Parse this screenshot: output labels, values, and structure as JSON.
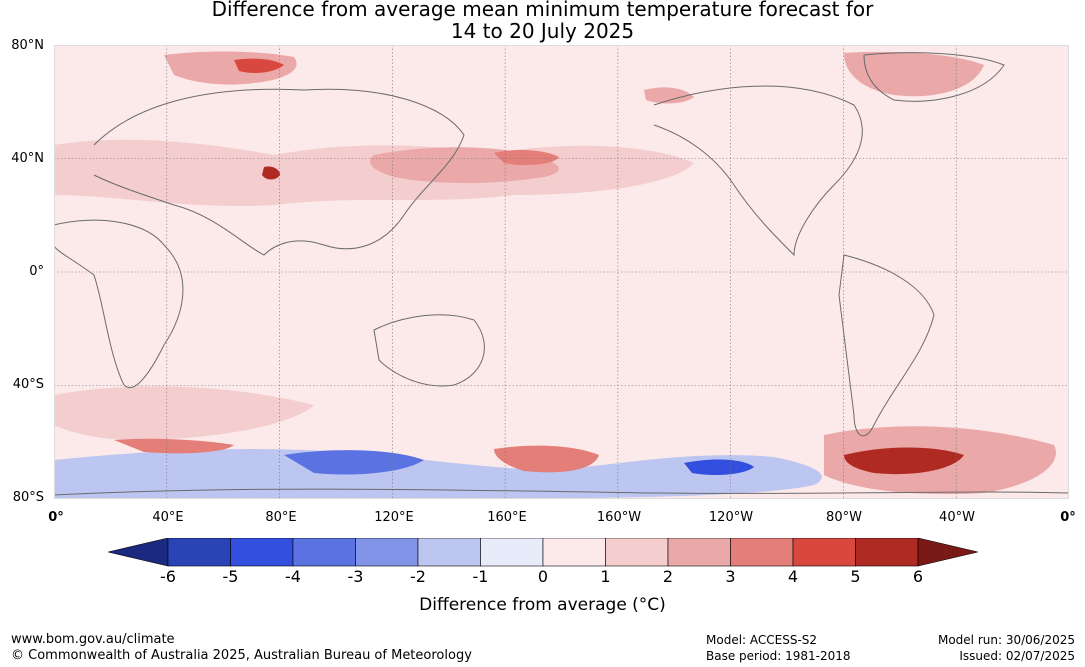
{
  "title": {
    "line1": "Difference from average mean minimum temperature forecast for",
    "line2": "14 to 20 July 2025"
  },
  "map": {
    "lat_labels": [
      "80°N",
      "40°N",
      "0°",
      "40°S",
      "80°S"
    ],
    "lon_labels": [
      "0°",
      "40°E",
      "80°E",
      "120°E",
      "160°E",
      "160°W",
      "120°W",
      "80°W",
      "40°W",
      "0°"
    ]
  },
  "colorbar": {
    "ticks": [
      "-6",
      "-5",
      "-4",
      "-3",
      "-2",
      "-1",
      "0",
      "1",
      "2",
      "3",
      "4",
      "5",
      "6"
    ],
    "colors": [
      "#1b2a80",
      "#2a44b8",
      "#334fe0",
      "#5a72e2",
      "#8294e8",
      "#bcc6f1",
      "#e8ecfa",
      "#fce9e9",
      "#f4cece",
      "#eaa8a8",
      "#e47e78",
      "#d8483e",
      "#b02a24",
      "#7a1a16"
    ],
    "label": "Difference from average (°C)"
  },
  "footer": {
    "website": "www.bom.gov.au/climate",
    "copyright": "© Commonwealth of Australia 2025, Australian Bureau of Meteorology",
    "model": "Model: ACCESS-S2",
    "base_period": "Base period: 1981-2018",
    "model_run": "Model run: 30/06/2025",
    "issued": "Issued: 02/07/2025"
  }
}
